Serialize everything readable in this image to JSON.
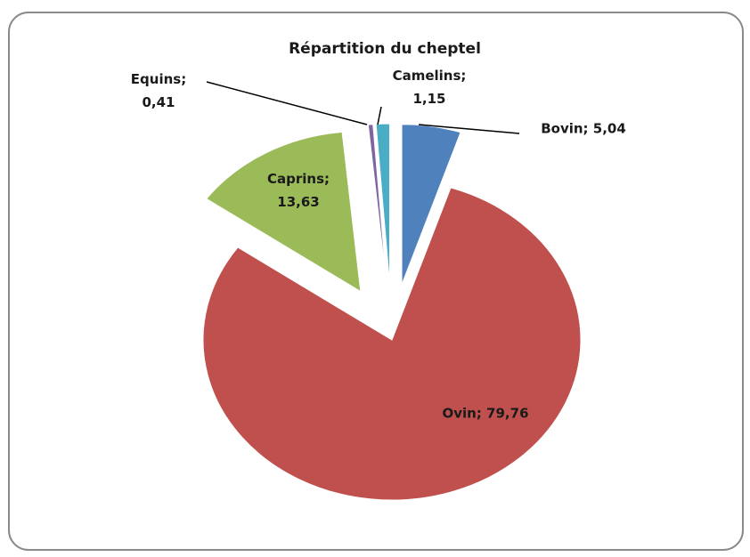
{
  "chart_data": {
    "type": "pie",
    "title": "Répartition du cheptel",
    "categories": [
      "Bovin",
      "Ovin",
      "Caprins",
      "Equins",
      "Camelins"
    ],
    "values": [
      5.04,
      79.76,
      13.63,
      0.41,
      1.15
    ],
    "value_labels": [
      "Bovin; 5,04",
      "Ovin; 79,76",
      "Caprins; 13,63",
      "Equins; 0,41",
      "Camelins; 1,15"
    ],
    "colors": [
      "#4f81bd",
      "#c0504d",
      "#9bbb59",
      "#8064a2",
      "#4bacc6"
    ]
  }
}
